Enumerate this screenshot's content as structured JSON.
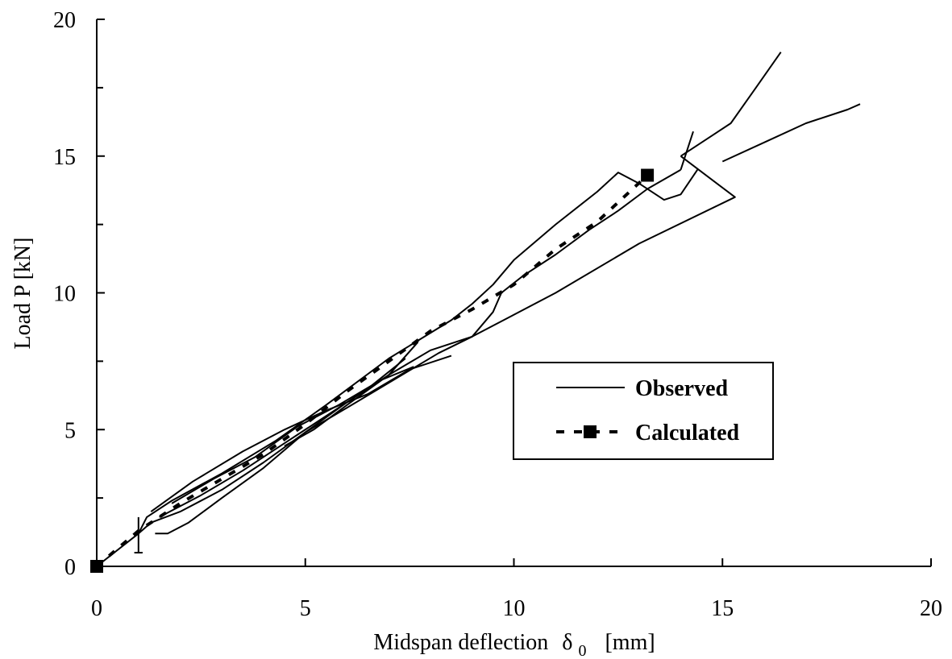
{
  "chart_data": {
    "type": "line",
    "xlabel_main": "Midspan deflection",
    "xlabel_symbol": "δ",
    "xlabel_subscript": "0",
    "xlabel_unit": "[mm]",
    "ylabel": "Load  P [kN]",
    "xlim": [
      0,
      20
    ],
    "ylim": [
      0,
      20
    ],
    "x_ticks": [
      0,
      5,
      10,
      15,
      20
    ],
    "y_ticks": [
      0,
      5,
      10,
      15,
      20
    ],
    "x_tick_labels": [
      "0",
      "5",
      "10",
      "15",
      "20"
    ],
    "y_tick_labels": [
      "0",
      "5",
      "10",
      "15",
      "20"
    ],
    "grid": false,
    "legend_position": "center-right",
    "legend": [
      {
        "label": "Observed",
        "style": "solid"
      },
      {
        "label": "Calculated",
        "style": "dashed-square"
      }
    ],
    "series": [
      {
        "name": "Observed",
        "style": "solid",
        "paths": [
          {
            "x": [
              0,
              1.0,
              1.2,
              1.8,
              3.0,
              4.3,
              5.5,
              7.0,
              8.5,
              9.0,
              9.5,
              10.0,
              11.0,
              12.0,
              12.5,
              13.0,
              13.6,
              14.0,
              14.4
            ],
            "y": [
              0,
              1.2,
              1.8,
              2.4,
              3.4,
              4.6,
              5.9,
              7.6,
              9.0,
              9.6,
              10.3,
              11.2,
              12.5,
              13.7,
              14.4,
              14.0,
              13.4,
              13.6,
              14.5
            ]
          },
          {
            "x": [
              1.0,
              1.0
            ],
            "y": [
              1.8,
              0.5
            ]
          },
          {
            "x": [
              0.9,
              1.1
            ],
            "y": [
              0.5,
              0.5
            ]
          },
          {
            "x": [
              1.4,
              1.7,
              2.2,
              3.0,
              4.0,
              5.0,
              6.0,
              7.0,
              8.0,
              9.0,
              9.5,
              9.7
            ],
            "y": [
              1.2,
              1.2,
              1.6,
              2.5,
              3.6,
              4.9,
              6.0,
              7.0,
              7.9,
              8.4,
              9.3,
              10.0
            ]
          },
          {
            "x": [
              9.7,
              10.2,
              11.0,
              11.8,
              12.5,
              13.2,
              14.0
            ],
            "y": [
              10.0,
              10.6,
              11.4,
              12.3,
              13.0,
              13.8,
              14.5
            ]
          },
          {
            "x": [
              14.0,
              14.3
            ],
            "y": [
              14.5,
              15.9
            ]
          },
          {
            "x": [
              14.0,
              15.3,
              13.0,
              11.0,
              9.0,
              8.2,
              6.0,
              5.0,
              4.0,
              3.0,
              2.0,
              1.3,
              1.0
            ],
            "y": [
              15.0,
              13.5,
              11.8,
              10.0,
              8.4,
              7.8,
              5.8,
              4.9,
              3.8,
              2.8,
              2.0,
              1.6,
              1.2
            ]
          },
          {
            "x": [
              14.0,
              14.5,
              15.2,
              15.8,
              16.4
            ],
            "y": [
              15.0,
              15.5,
              16.2,
              17.5,
              18.8
            ]
          },
          {
            "x": [
              15.0,
              16.0,
              17.0,
              18.0,
              18.3
            ],
            "y": [
              14.8,
              15.5,
              16.2,
              16.7,
              16.9
            ]
          },
          {
            "x": [
              1.3,
              2.3,
              3.5,
              4.5,
              5.5,
              6.5,
              7.5,
              8.5
            ],
            "y": [
              2.0,
              3.1,
              4.2,
              5.0,
              5.7,
              6.3,
              7.2,
              7.7
            ]
          },
          {
            "x": [
              1.5,
              2.5,
              3.5,
              4.5,
              5.5,
              6.5,
              7.4
            ],
            "y": [
              1.8,
              2.6,
              3.5,
              4.5,
              5.5,
              6.5,
              7.6
            ]
          },
          {
            "x": [
              4.5,
              5.2,
              6.0,
              7.0,
              7.7
            ],
            "y": [
              4.4,
              5.0,
              5.9,
              7.0,
              8.2
            ]
          },
          {
            "x": [
              1.8,
              2.8,
              3.8,
              4.8,
              5.8,
              6.8,
              7.6
            ],
            "y": [
              2.3,
              3.2,
              4.0,
              5.1,
              5.9,
              6.8,
              7.3
            ]
          }
        ]
      },
      {
        "name": "Calculated",
        "style": "dashed",
        "x": [
          0,
          1.0,
          2.0,
          3.0,
          4.0,
          5.0,
          6.0,
          7.0,
          8.0,
          9.0,
          10.0,
          11.0,
          12.0,
          13.2
        ],
        "y": [
          0,
          1.3,
          2.3,
          3.2,
          4.1,
          5.2,
          6.4,
          7.5,
          8.6,
          9.4,
          10.3,
          11.6,
          12.6,
          14.3
        ],
        "markers": [
          {
            "x": 0,
            "y": 0
          },
          {
            "x": 13.2,
            "y": 14.3
          }
        ]
      }
    ]
  }
}
